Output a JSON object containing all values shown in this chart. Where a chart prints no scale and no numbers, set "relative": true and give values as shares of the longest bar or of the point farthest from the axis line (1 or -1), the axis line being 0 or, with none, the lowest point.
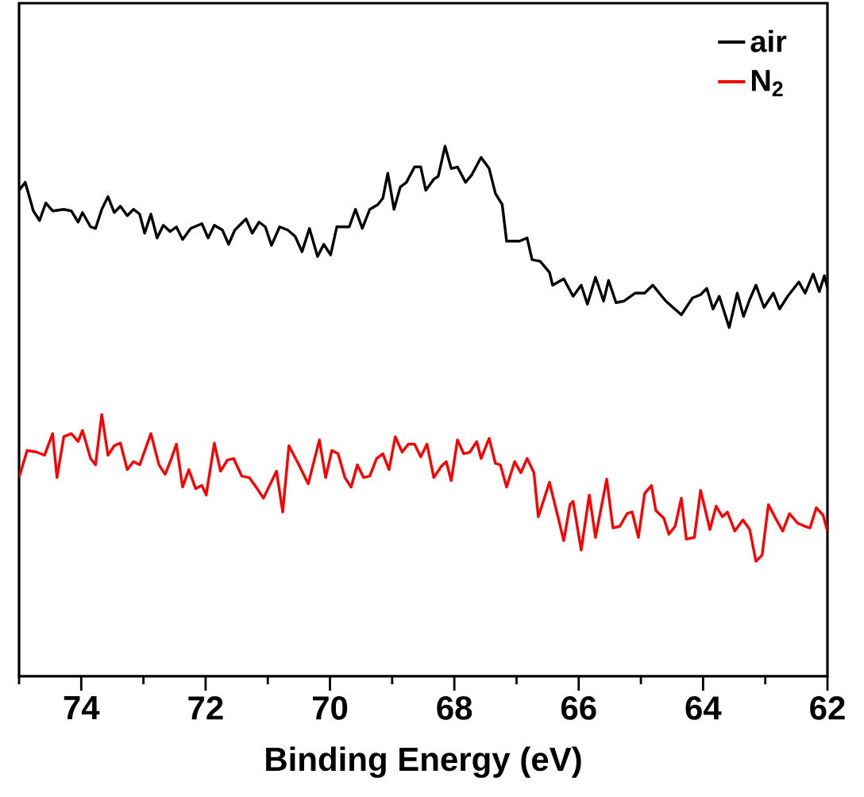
{
  "chart_data": {
    "type": "line",
    "relative": true,
    "xlabel": "Binding Energy (eV)",
    "legend": "top right",
    "line_style": "solid",
    "xlim": [
      75,
      62
    ],
    "xticks": [
      74,
      72,
      70,
      68,
      66,
      64,
      62,
      {
        "value": 75,
        "label": null
      },
      {
        "value": 73,
        "label": null
      },
      {
        "value": 71,
        "label": null
      },
      {
        "value": 69,
        "label": null
      },
      {
        "value": 67,
        "label": null
      },
      {
        "value": 65,
        "label": null
      },
      {
        "value": 63,
        "label": null
      }
    ],
    "series": [
      {
        "name": "air",
        "color": "#000000",
        "x": [
          75.0,
          74.9,
          74.77,
          74.67,
          74.57,
          74.46,
          74.28,
          74.16,
          74.05,
          73.98,
          73.85,
          73.77,
          73.67,
          73.57,
          73.47,
          73.37,
          73.26,
          73.16,
          73.06,
          72.98,
          72.88,
          72.78,
          72.68,
          72.57,
          72.47,
          72.37,
          72.24,
          72.06,
          71.96,
          71.86,
          71.73,
          71.63,
          71.53,
          71.35,
          71.25,
          71.14,
          71.04,
          70.94,
          70.81,
          70.68,
          70.56,
          70.45,
          70.33,
          70.2,
          70.1,
          69.99,
          69.89,
          69.69,
          69.59,
          69.48,
          69.36,
          69.23,
          69.15,
          69.07,
          68.97,
          68.87,
          68.77,
          68.64,
          68.54,
          68.46,
          68.33,
          68.26,
          68.15,
          68.05,
          67.95,
          67.82,
          67.72,
          67.57,
          67.44,
          67.34,
          67.23,
          67.16,
          66.95,
          66.83,
          66.75,
          66.62,
          66.47,
          66.42,
          66.24,
          66.09,
          65.96,
          65.86,
          65.73,
          65.6,
          65.52,
          65.4,
          65.27,
          65.09,
          64.94,
          64.81,
          64.6,
          64.35,
          64.17,
          64.04,
          63.94,
          63.84,
          63.74,
          63.58,
          63.45,
          63.35,
          63.25,
          63.15,
          63.02,
          62.87,
          62.77,
          62.64,
          62.46,
          62.36,
          62.23,
          62.13,
          62.05,
          62.0
        ],
        "values": [
          0.917,
          0.932,
          0.878,
          0.86,
          0.893,
          0.878,
          0.881,
          0.878,
          0.857,
          0.875,
          0.848,
          0.845,
          0.881,
          0.905,
          0.875,
          0.887,
          0.869,
          0.881,
          0.872,
          0.836,
          0.872,
          0.827,
          0.851,
          0.839,
          0.848,
          0.824,
          0.845,
          0.854,
          0.827,
          0.851,
          0.842,
          0.815,
          0.842,
          0.863,
          0.836,
          0.857,
          0.848,
          0.813,
          0.848,
          0.842,
          0.83,
          0.801,
          0.845,
          0.792,
          0.815,
          0.795,
          0.848,
          0.848,
          0.881,
          0.845,
          0.881,
          0.89,
          0.902,
          0.949,
          0.881,
          0.923,
          0.932,
          0.961,
          0.961,
          0.917,
          0.938,
          0.943,
          1.0,
          0.958,
          0.961,
          0.932,
          0.946,
          0.979,
          0.958,
          0.911,
          0.89,
          0.821,
          0.821,
          0.827,
          0.786,
          0.783,
          0.762,
          0.738,
          0.75,
          0.717,
          0.738,
          0.702,
          0.753,
          0.708,
          0.747,
          0.705,
          0.708,
          0.723,
          0.723,
          0.738,
          0.708,
          0.682,
          0.714,
          0.72,
          0.732,
          0.693,
          0.717,
          0.658,
          0.723,
          0.679,
          0.711,
          0.738,
          0.696,
          0.723,
          0.693,
          0.717,
          0.744,
          0.723,
          0.759,
          0.726,
          0.756,
          0.732
        ]
      },
      {
        "name": "N$_{2}$",
        "color": "#ff0000",
        "x": [
          75.0,
          74.87,
          74.72,
          74.59,
          74.46,
          74.39,
          74.28,
          74.16,
          74.05,
          73.98,
          73.85,
          73.77,
          73.67,
          73.57,
          73.47,
          73.37,
          73.26,
          73.16,
          73.06,
          72.88,
          72.75,
          72.65,
          72.55,
          72.47,
          72.37,
          72.27,
          72.16,
          72.06,
          71.99,
          71.86,
          71.76,
          71.65,
          71.55,
          71.42,
          71.3,
          71.17,
          71.07,
          70.86,
          70.76,
          70.66,
          70.5,
          70.35,
          70.17,
          70.07,
          69.97,
          69.87,
          69.76,
          69.66,
          69.56,
          69.46,
          69.36,
          69.25,
          69.15,
          69.05,
          68.95,
          68.84,
          68.74,
          68.64,
          68.54,
          68.44,
          68.33,
          68.21,
          68.13,
          68.05,
          67.95,
          67.85,
          67.75,
          67.64,
          67.57,
          67.44,
          67.34,
          67.26,
          67.16,
          67.03,
          66.93,
          66.83,
          66.72,
          66.65,
          66.47,
          66.24,
          66.14,
          66.09,
          65.96,
          65.83,
          65.73,
          65.55,
          65.45,
          65.34,
          65.22,
          65.14,
          65.04,
          64.94,
          64.83,
          64.76,
          64.63,
          64.55,
          64.45,
          64.35,
          64.27,
          64.14,
          64.04,
          63.89,
          63.79,
          63.69,
          63.61,
          63.49,
          63.36,
          63.25,
          63.15,
          63.05,
          62.95,
          62.82,
          62.72,
          62.61,
          62.48,
          62.36,
          62.28,
          62.18,
          62.07,
          62.0
        ],
        "values": [
          0.375,
          0.426,
          0.423,
          0.417,
          0.458,
          0.375,
          0.452,
          0.458,
          0.443,
          0.464,
          0.411,
          0.399,
          0.494,
          0.417,
          0.435,
          0.44,
          0.39,
          0.405,
          0.399,
          0.458,
          0.399,
          0.381,
          0.411,
          0.438,
          0.357,
          0.39,
          0.354,
          0.36,
          0.342,
          0.44,
          0.387,
          0.408,
          0.411,
          0.378,
          0.375,
          0.354,
          0.336,
          0.387,
          0.31,
          0.435,
          0.399,
          0.363,
          0.446,
          0.375,
          0.426,
          0.42,
          0.375,
          0.357,
          0.399,
          0.375,
          0.378,
          0.411,
          0.42,
          0.39,
          0.452,
          0.423,
          0.438,
          0.438,
          0.414,
          0.438,
          0.375,
          0.396,
          0.405,
          0.369,
          0.446,
          0.42,
          0.423,
          0.443,
          0.411,
          0.449,
          0.402,
          0.399,
          0.357,
          0.405,
          0.384,
          0.411,
          0.384,
          0.301,
          0.366,
          0.256,
          0.324,
          0.33,
          0.238,
          0.342,
          0.262,
          0.372,
          0.28,
          0.283,
          0.307,
          0.31,
          0.262,
          0.345,
          0.36,
          0.313,
          0.298,
          0.268,
          0.283,
          0.336,
          0.259,
          0.262,
          0.351,
          0.277,
          0.321,
          0.301,
          0.31,
          0.274,
          0.295,
          0.277,
          0.217,
          0.229,
          0.324,
          0.295,
          0.274,
          0.307,
          0.289,
          0.283,
          0.28,
          0.318,
          0.304,
          0.274
        ]
      }
    ]
  }
}
